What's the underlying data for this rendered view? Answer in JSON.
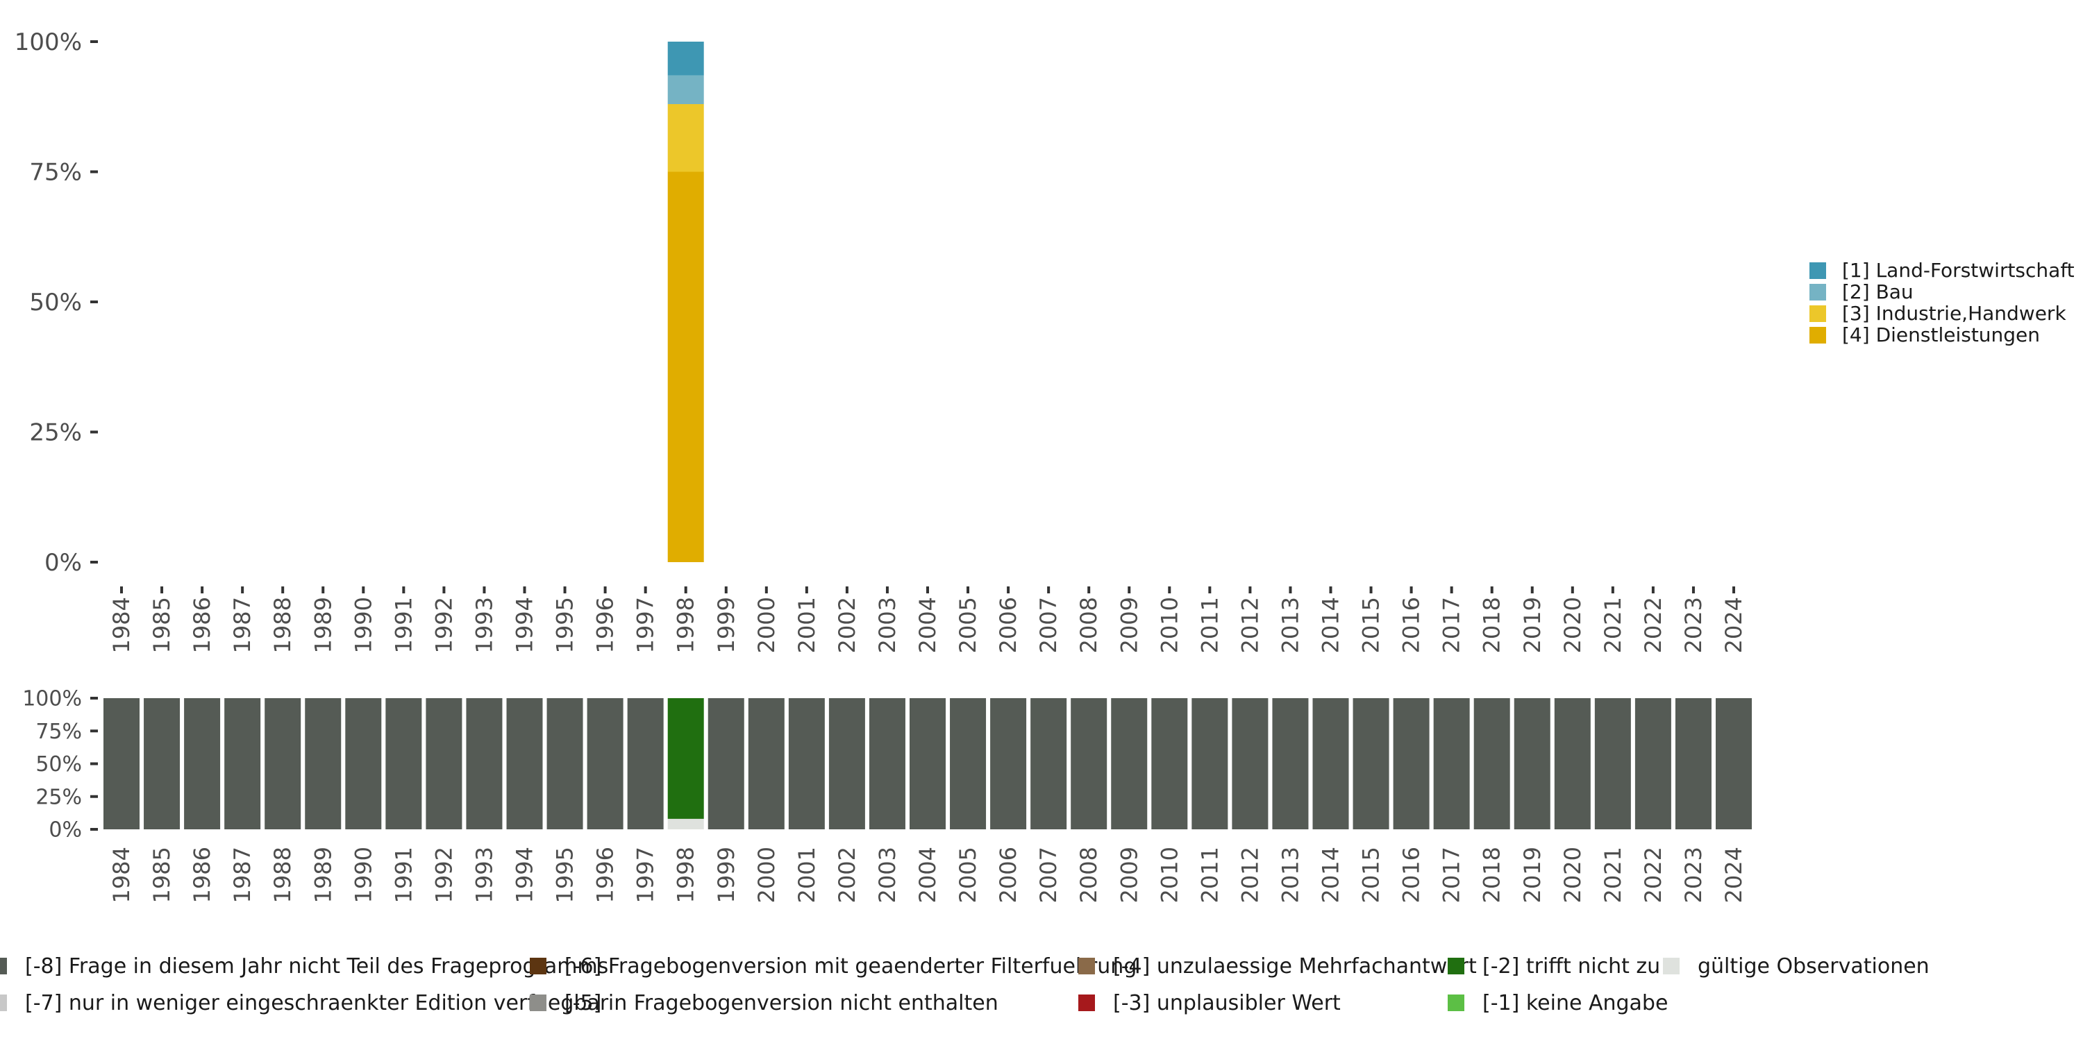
{
  "chart_data": [
    {
      "type": "bar",
      "stacked": true,
      "name": "top-panel",
      "title": "",
      "xlabel": "",
      "ylabel": "",
      "ylim": [
        0,
        100
      ],
      "y_ticks": [
        "0%",
        "25%",
        "50%",
        "75%",
        "100%"
      ],
      "categories": [
        "1984",
        "1985",
        "1986",
        "1987",
        "1988",
        "1989",
        "1990",
        "1991",
        "1992",
        "1993",
        "1994",
        "1995",
        "1996",
        "1997",
        "1998",
        "1999",
        "2000",
        "2001",
        "2002",
        "2003",
        "2004",
        "2005",
        "2006",
        "2007",
        "2008",
        "2009",
        "2010",
        "2011",
        "2012",
        "2013",
        "2014",
        "2015",
        "2016",
        "2017",
        "2018",
        "2019",
        "2020",
        "2021",
        "2022",
        "2023",
        "2024"
      ],
      "legend_position": "right",
      "series": [
        {
          "name": "[4] Dienstleistungen",
          "color": "#e0ad00",
          "values": {
            "1998": 75
          }
        },
        {
          "name": "[3] Industrie,Handwerk",
          "color": "#ecc72a",
          "values": {
            "1998": 13
          }
        },
        {
          "name": "[2] Bau",
          "color": "#75b3c4",
          "values": {
            "1998": 5.5
          }
        },
        {
          "name": "[1] Land-Forstwirtschaft",
          "color": "#3e97b3",
          "values": {
            "1998": 6.5
          }
        }
      ],
      "legend_entries": [
        {
          "label": "[1] Land-Forstwirtschaft",
          "color": "#3e97b3"
        },
        {
          "label": "[2] Bau",
          "color": "#75b3c4"
        },
        {
          "label": "[3] Industrie,Handwerk",
          "color": "#ecc72a"
        },
        {
          "label": "[4] Dienstleistungen",
          "color": "#e0ad00"
        }
      ]
    },
    {
      "type": "bar",
      "stacked": true,
      "name": "bottom-panel",
      "title": "",
      "xlabel": "",
      "ylabel": "",
      "ylim": [
        0,
        100
      ],
      "y_ticks": [
        "0%",
        "25%",
        "50%",
        "75%",
        "100%"
      ],
      "categories": [
        "1984",
        "1985",
        "1986",
        "1987",
        "1988",
        "1989",
        "1990",
        "1991",
        "1992",
        "1993",
        "1994",
        "1995",
        "1996",
        "1997",
        "1998",
        "1999",
        "2000",
        "2001",
        "2002",
        "2003",
        "2004",
        "2005",
        "2006",
        "2007",
        "2008",
        "2009",
        "2010",
        "2011",
        "2012",
        "2013",
        "2014",
        "2015",
        "2016",
        "2017",
        "2018",
        "2019",
        "2020",
        "2021",
        "2022",
        "2023",
        "2024"
      ],
      "default_stack": [
        {
          "label": "[-8] Frage in diesem Jahr nicht Teil des Frageprogramms",
          "value": 100
        }
      ],
      "overrides": {
        "1998": [
          {
            "label": "gültige Observationen",
            "value": 8
          },
          {
            "label": "[-2] trifft nicht zu",
            "value": 92
          }
        ]
      },
      "legend_position": "bottom",
      "legend_entries": [
        {
          "label": "[-8] Frage in diesem Jahr nicht Teil des Frageprogramms",
          "color": "#555b55"
        },
        {
          "label": "[-7] nur in weniger eingeschraenkter Edition verfuegbar",
          "color": "#c8c8c8"
        },
        {
          "label": "[-6] Fragebogenversion mit geaenderter Filterfuehrung",
          "color": "#5c3511"
        },
        {
          "label": "[-5] in Fragebogenversion nicht enthalten",
          "color": "#8e8e8a"
        },
        {
          "label": "[-4] unzulaessige Mehrfachantwort",
          "color": "#8a6a49"
        },
        {
          "label": "[-3] unplausibler Wert",
          "color": "#a6191c"
        },
        {
          "label": "[-2] trifft nicht zu",
          "color": "#206f10"
        },
        {
          "label": "[-1] keine Angabe",
          "color": "#5cbf45"
        },
        {
          "label": "gültige Observationen",
          "color": "#dfe2de"
        }
      ]
    }
  ]
}
